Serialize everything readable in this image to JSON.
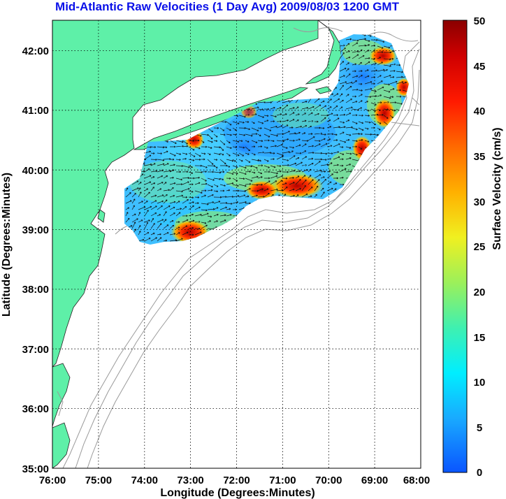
{
  "title": "Mid-Atlantic Raw Velocities (1 Day Avg) 2009/08/03 1200 GMT",
  "xlabel": "Longitude (Degrees:Minutes)",
  "ylabel": "Latitude (Degrees:Minutes)",
  "colorbar_label": "Surface Velocity (cm/s)",
  "x_ticks": [
    "76:00",
    "75:00",
    "74:00",
    "73:00",
    "72:00",
    "71:00",
    "70:00",
    "69:00",
    "68:00"
  ],
  "y_ticks": [
    "42:00",
    "41:00",
    "40:00",
    "39:00",
    "38:00",
    "37:00",
    "36:00",
    "35:00"
  ],
  "colorbar_ticks": [
    "50",
    "45",
    "40",
    "35",
    "30",
    "25",
    "20",
    "15",
    "10",
    "5",
    "0"
  ],
  "colors": {
    "land": "#5ef0a8",
    "ocean": "#ffffff",
    "bathymetry": "#9a9a9a",
    "title": "#0a10e8"
  },
  "map": {
    "lon_range": [
      -76,
      -68
    ],
    "lat_range": [
      35,
      42.5
    ],
    "colorbar_range": [
      0,
      50
    ]
  }
}
